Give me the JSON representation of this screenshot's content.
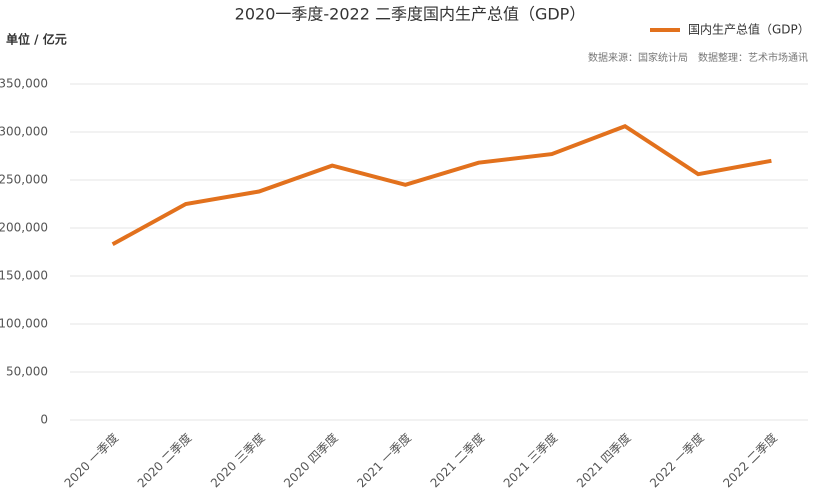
{
  "chart_data": {
    "type": "line",
    "title": "2020一季度-2022 二季度国内生产总值（GDP）",
    "y_label": "单位 / 亿元",
    "notes": [
      "数据来源：国家统计局",
      "数据整理：艺术市场通讯"
    ],
    "categories": [
      "2020 一季度",
      "2020 二季度",
      "2020 三季度",
      "2020 四季度",
      "2021 一季度",
      "2021 二季度",
      "2021 三季度",
      "2021 四季度",
      "2022 一季度",
      "2022 二季度"
    ],
    "series": [
      {
        "name": "国内生产总值（GDP）",
        "color": "#e2711d",
        "values": [
          183000,
          225000,
          238000,
          265000,
          245000,
          268000,
          277000,
          306000,
          256000,
          270000
        ]
      }
    ],
    "ylim": [
      0,
      350000
    ],
    "yticks": [
      0,
      {
        "value": 50000,
        "label": "50,000"
      },
      {
        "value": 100000,
        "label": "100,000"
      },
      {
        "value": 150000,
        "label": "150,000"
      },
      {
        "value": 200000,
        "label": "200,000"
      },
      {
        "value": 250000,
        "label": "250,000"
      },
      {
        "value": 300000,
        "label": "300,000"
      },
      {
        "value": 350000,
        "label": "350,000"
      }
    ],
    "grid": true,
    "legend": "top-right"
  }
}
